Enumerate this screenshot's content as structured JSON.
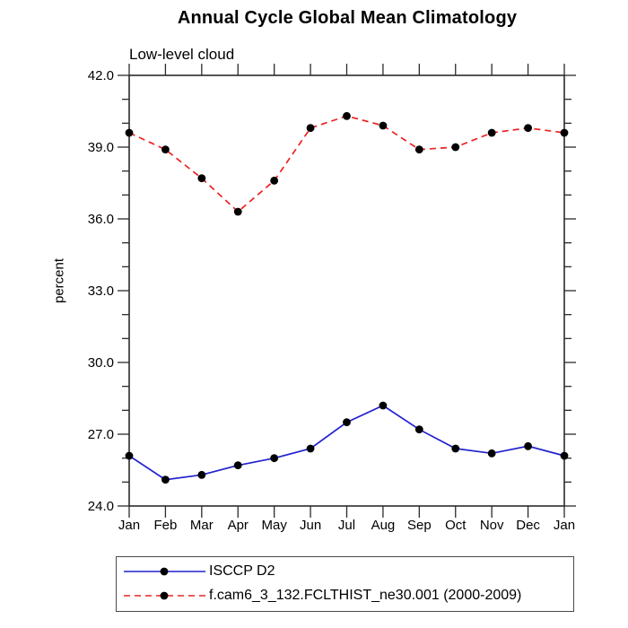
{
  "page": {
    "background": "#ffffff"
  },
  "chart_data": {
    "type": "line",
    "title": "Annual Cycle Global Mean Climatology",
    "subtitle": "Low-level cloud",
    "ylabel": "percent",
    "categories": [
      "Jan",
      "Feb",
      "Mar",
      "Apr",
      "May",
      "Jun",
      "Jul",
      "Aug",
      "Sep",
      "Oct",
      "Nov",
      "Dec",
      "Jan"
    ],
    "ylim": [
      24.0,
      42.0
    ],
    "ytick_interval_major": 3.0,
    "ytick_interval_minor": 1.0,
    "ytick_labels": [
      "24.0",
      "27.0",
      "30.0",
      "33.0",
      "36.0",
      "39.0",
      "42.0"
    ],
    "grid": false,
    "legend_position": "bottom-left",
    "axis_color": "#2b2b2b",
    "marker_color": "#000000",
    "series": [
      {
        "name": "ISCCP D2",
        "color": "#2121ce",
        "line_style": "solid",
        "marker": "circle",
        "values": [
          26.1,
          25.1,
          25.3,
          25.7,
          26.0,
          26.4,
          27.5,
          28.2,
          27.2,
          26.4,
          26.2,
          26.5,
          26.1
        ]
      },
      {
        "name": "f.cam6_3_132.FCLTHIST_ne30.001 (2000-2009)",
        "color": "#ee2222",
        "line_style": "dashed",
        "marker": "circle",
        "values": [
          39.6,
          38.9,
          37.7,
          36.3,
          37.6,
          39.8,
          40.3,
          39.9,
          38.9,
          39.0,
          39.6,
          39.8,
          39.6
        ]
      }
    ]
  }
}
